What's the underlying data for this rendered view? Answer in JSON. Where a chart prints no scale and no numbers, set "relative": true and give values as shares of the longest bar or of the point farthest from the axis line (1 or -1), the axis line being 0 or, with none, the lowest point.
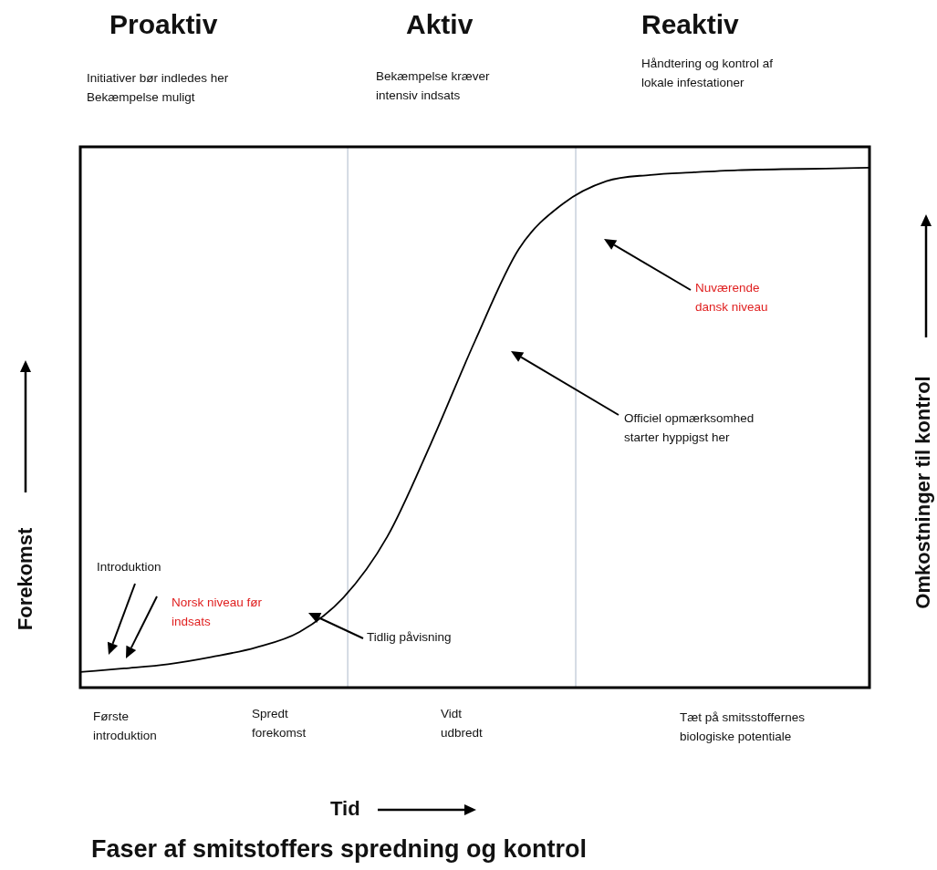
{
  "chart_data": {
    "type": "line",
    "relative": true,
    "marker": "none",
    "title": "Faser af smitstoffers spredning og kontrol",
    "ylabel": "Forekomst",
    "y2label": "Omkostninger til kontrol",
    "categories": [
      null,
      null,
      null,
      null,
      null,
      null,
      null,
      null,
      null,
      null,
      null,
      null,
      null,
      null,
      null,
      null,
      null,
      null,
      null
    ],
    "series": [
      {
        "color": "#000000",
        "values": [
          0.03,
          0.037,
          0.045,
          0.059,
          0.077,
          0.107,
          0.173,
          0.29,
          0.47,
          0.666,
          0.843,
          0.93,
          0.974,
          0.986,
          0.991,
          0.995,
          0.997,
          0.998,
          1
        ]
      }
    ],
    "annotations": [
      "Proaktiv",
      "Aktiv",
      "Reaktiv",
      "Initiativer bør indledes her\nBekæmpelse muligt",
      "Bekæmpelse kræver\nintensiv indsats",
      "Håndtering og kontrol af\nlokale infestationer",
      "Introduktion",
      "Norsk niveau  før\nindsats",
      "Tidlig påvisning",
      "Officiel opmærksomhed\nstarter hyppigst her",
      "Nuværende\ndansk niveau",
      "Første\nintroduktion",
      "Spredt\nforekomst",
      "Vidt\nudbredt",
      "Tæt på smitsstoffernes\nbiologiske potentiale",
      "Tid"
    ]
  }
}
